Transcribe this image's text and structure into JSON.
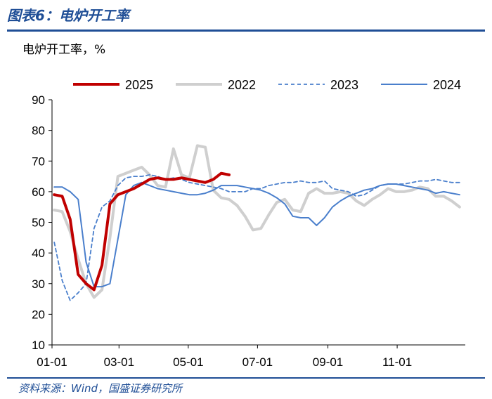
{
  "figure": {
    "title": "图表6：电炉开工率",
    "source": "资料来源：Wind，国盛证券研究所"
  },
  "chart_data": {
    "type": "line",
    "ylabel": "电炉开工率，%",
    "ylim": [
      10,
      90
    ],
    "yticks": [
      10,
      20,
      30,
      40,
      50,
      60,
      70,
      80,
      90
    ],
    "xlim": [
      "01-01",
      "12-31"
    ],
    "xticks": [
      "01-01",
      "03-01",
      "05-01",
      "07-01",
      "09-01",
      "11-01"
    ],
    "grid": false,
    "legend": "top",
    "series": [
      {
        "name": "2025",
        "color": "#c00000",
        "style": "solid-thick",
        "x": [
          "01-03",
          "01-10",
          "01-17",
          "01-24",
          "01-31",
          "02-07",
          "02-14",
          "02-21",
          "02-28",
          "03-07",
          "03-14",
          "03-21",
          "03-28",
          "04-04",
          "04-11",
          "04-18",
          "04-25",
          "05-02",
          "05-09",
          "05-16",
          "05-23",
          "05-30",
          "06-06"
        ],
        "y": [
          59.0,
          58.5,
          51.0,
          33.0,
          30.0,
          28.0,
          36.0,
          56.0,
          59.0,
          60.0,
          61.0,
          62.5,
          64.0,
          64.5,
          64.0,
          64.0,
          64.5,
          64.0,
          63.5,
          63.0,
          64.0,
          66.0,
          65.5
        ]
      },
      {
        "name": "2022",
        "color": "#cfcfcf",
        "style": "solid-thick",
        "x": [
          "01-03",
          "01-10",
          "01-17",
          "01-24",
          "01-31",
          "02-07",
          "02-14",
          "02-21",
          "02-28",
          "03-07",
          "03-14",
          "03-21",
          "03-28",
          "04-04",
          "04-11",
          "04-18",
          "04-25",
          "05-02",
          "05-09",
          "05-16",
          "05-23",
          "05-30",
          "06-06",
          "06-13",
          "06-20",
          "06-27",
          "07-04",
          "07-11",
          "07-18",
          "07-25",
          "08-01",
          "08-08",
          "08-15",
          "08-22",
          "08-29",
          "09-05",
          "09-12",
          "09-19",
          "09-26",
          "10-03",
          "10-10",
          "10-17",
          "10-24",
          "10-31",
          "11-07",
          "11-14",
          "11-21",
          "11-28",
          "12-05",
          "12-12",
          "12-19",
          "12-26"
        ],
        "y": [
          54.0,
          53.5,
          47.0,
          38.0,
          30.0,
          25.5,
          28.0,
          45.0,
          65.0,
          66.0,
          67.0,
          68.0,
          65.5,
          62.0,
          61.5,
          74.0,
          65.5,
          64.5,
          75.0,
          74.5,
          60.5,
          58.0,
          57.5,
          55.5,
          52.0,
          47.5,
          48.0,
          52.5,
          56.5,
          57.5,
          54.0,
          53.5,
          59.5,
          61.0,
          59.5,
          59.5,
          60.0,
          59.5,
          57.0,
          55.5,
          57.5,
          59.0,
          61.0,
          60.0,
          60.0,
          60.5,
          61.5,
          61.0,
          58.5,
          58.5,
          57.0,
          55.0
        ]
      },
      {
        "name": "2023",
        "color": "#4a7fcc",
        "style": "dashed",
        "x": [
          "01-03",
          "01-10",
          "01-17",
          "01-24",
          "01-31",
          "02-07",
          "02-14",
          "02-21",
          "02-28",
          "03-07",
          "03-14",
          "03-21",
          "03-28",
          "04-04",
          "04-11",
          "04-18",
          "04-25",
          "05-02",
          "05-09",
          "05-16",
          "05-23",
          "05-30",
          "06-06",
          "06-13",
          "06-20",
          "06-27",
          "07-04",
          "07-11",
          "07-18",
          "07-25",
          "08-01",
          "08-08",
          "08-15",
          "08-22",
          "08-29",
          "09-05",
          "09-12",
          "09-19",
          "09-26",
          "10-03",
          "10-10",
          "10-17",
          "10-24",
          "10-31",
          "11-07",
          "11-14",
          "11-21",
          "11-28",
          "12-05",
          "12-12",
          "12-19",
          "12-26"
        ],
        "y": [
          43.5,
          31.0,
          24.5,
          27.0,
          30.0,
          48.0,
          55.0,
          57.0,
          62.0,
          64.5,
          65.0,
          65.0,
          65.5,
          65.0,
          64.0,
          64.5,
          64.0,
          63.0,
          62.5,
          62.0,
          61.5,
          61.0,
          60.0,
          60.0,
          60.0,
          61.0,
          61.0,
          62.0,
          62.5,
          63.0,
          63.0,
          63.5,
          63.0,
          63.0,
          63.5,
          61.0,
          60.5,
          60.0,
          58.5,
          59.0,
          60.5,
          62.0,
          62.5,
          62.5,
          62.5,
          63.0,
          63.5,
          63.5,
          64.0,
          63.5,
          63.0,
          63.0
        ]
      },
      {
        "name": "2024",
        "color": "#4a7fcc",
        "style": "solid",
        "x": [
          "01-03",
          "01-10",
          "01-17",
          "01-24",
          "01-31",
          "02-07",
          "02-14",
          "02-21",
          "02-28",
          "03-07",
          "03-14",
          "03-21",
          "03-28",
          "04-04",
          "04-11",
          "04-18",
          "04-25",
          "05-02",
          "05-09",
          "05-16",
          "05-23",
          "05-30",
          "06-06",
          "06-13",
          "06-20",
          "06-27",
          "07-04",
          "07-11",
          "07-18",
          "07-25",
          "08-01",
          "08-08",
          "08-15",
          "08-22",
          "08-29",
          "09-05",
          "09-12",
          "09-19",
          "09-26",
          "10-03",
          "10-10",
          "10-17",
          "10-24",
          "10-31",
          "11-07",
          "11-14",
          "11-21",
          "11-28",
          "12-05",
          "12-12",
          "12-19",
          "12-26"
        ],
        "y": [
          61.5,
          61.5,
          60.0,
          57.5,
          37.0,
          29.0,
          29.0,
          30.0,
          44.5,
          59.0,
          62.0,
          63.0,
          62.0,
          61.0,
          60.5,
          60.0,
          59.5,
          59.0,
          59.0,
          59.5,
          60.5,
          62.0,
          62.0,
          62.0,
          61.5,
          61.0,
          60.5,
          59.5,
          58.0,
          56.0,
          52.0,
          51.5,
          51.5,
          49.0,
          51.5,
          55.0,
          57.0,
          58.5,
          59.5,
          60.5,
          61.0,
          62.0,
          62.5,
          62.5,
          62.0,
          61.5,
          61.0,
          60.5,
          59.5,
          60.0,
          59.5,
          59.0
        ]
      }
    ]
  }
}
